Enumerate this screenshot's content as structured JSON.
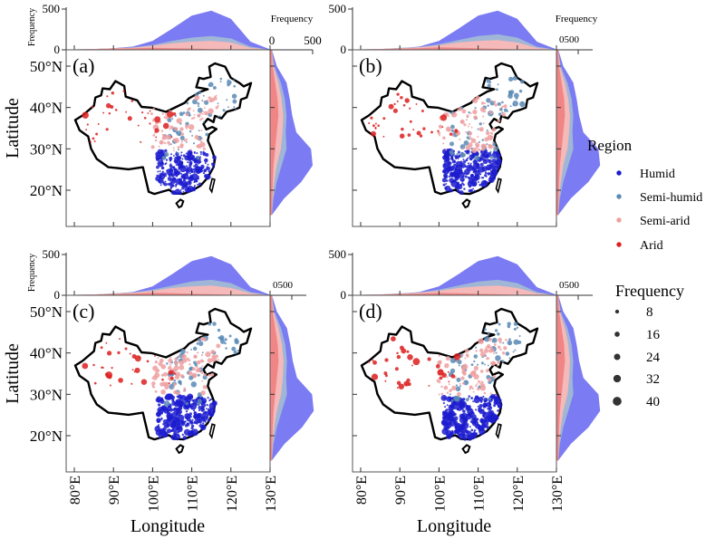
{
  "chart_data": {
    "type": "scatter",
    "title": "",
    "xlabel": "Longitude",
    "ylabel": "Latitude",
    "marginal_label": "Frequency",
    "xlim": [
      78,
      130
    ],
    "ylim": [
      12,
      54
    ],
    "x_ticks": [
      "80°E",
      "90°E",
      "100°E",
      "110°E",
      "120°E",
      "130°E"
    ],
    "x_tick_values": [
      80,
      90,
      100,
      110,
      120,
      130
    ],
    "y_ticks": [
      "50°N",
      "40°N",
      "30°N",
      "20°N"
    ],
    "y_tick_values": [
      50,
      40,
      30,
      20
    ],
    "top_marginal_ticks": [
      "500",
      "0"
    ],
    "right_marginal_tick_a": [
      "0",
      "500"
    ],
    "right_marginal_tick_compact": "0500",
    "legend_region": {
      "title": "Region",
      "items": [
        {
          "label": "Humid",
          "color": "#1c1ccf"
        },
        {
          "label": "Semi-humid",
          "color": "#5a8ab5"
        },
        {
          "label": "Semi-arid",
          "color": "#ee9fa0"
        },
        {
          "label": "Arid",
          "color": "#dd1f1f"
        }
      ]
    },
    "legend_size": {
      "title": "Frequency",
      "items": [
        {
          "label": "8",
          "value": 8
        },
        {
          "label": "16",
          "value": 16
        },
        {
          "label": "24",
          "value": 24
        },
        {
          "label": "32",
          "value": 32
        },
        {
          "label": "40",
          "value": 40
        }
      ]
    },
    "density_colors": {
      "Humid": "#7b7bf3",
      "Semi-humid": "#9fb6d6",
      "Semi-arid": "#f5b9b9",
      "Arid": "#f08585"
    },
    "top_density_lon": [
      80,
      85,
      90,
      95,
      100,
      105,
      110,
      115,
      120,
      125,
      130
    ],
    "right_density_lat": [
      14,
      18,
      22,
      26,
      30,
      34,
      38,
      42,
      46,
      50,
      54
    ],
    "panels": [
      {
        "label": "(a)",
        "top": {
          "total": [
            5,
            10,
            20,
            40,
            110,
            260,
            420,
            480,
            380,
            100,
            5
          ],
          "semi_humid": [
            5,
            10,
            20,
            30,
            60,
            110,
            150,
            170,
            140,
            40,
            0
          ],
          "semi_arid": [
            5,
            10,
            20,
            25,
            50,
            80,
            100,
            110,
            90,
            25,
            0
          ],
          "arid": [
            5,
            8,
            15,
            18,
            25,
            20,
            15,
            10,
            5,
            2,
            0
          ]
        },
        "right": {
          "total": [
            0,
            150,
            360,
            500,
            480,
            300,
            250,
            220,
            180,
            60,
            0
          ],
          "semi_humid": [
            0,
            20,
            60,
            120,
            180,
            170,
            180,
            160,
            110,
            30,
            0
          ],
          "semi_arid": [
            0,
            10,
            30,
            60,
            110,
            130,
            140,
            120,
            80,
            20,
            0
          ],
          "arid": [
            0,
            5,
            10,
            20,
            40,
            60,
            80,
            70,
            40,
            10,
            0
          ]
        },
        "right_xlim": [
          0,
          500
        ],
        "seed": 11
      },
      {
        "label": "(b)",
        "top": {
          "total": [
            5,
            10,
            20,
            40,
            110,
            260,
            420,
            480,
            380,
            100,
            5
          ],
          "semi_humid": [
            5,
            10,
            25,
            35,
            70,
            120,
            170,
            190,
            150,
            40,
            0
          ],
          "semi_arid": [
            5,
            10,
            20,
            30,
            55,
            90,
            110,
            120,
            90,
            25,
            0
          ],
          "arid": [
            5,
            8,
            15,
            20,
            30,
            25,
            18,
            12,
            5,
            2,
            0
          ]
        },
        "right": {
          "total": [
            0,
            300,
            720,
            1000,
            960,
            600,
            500,
            440,
            360,
            120,
            0
          ],
          "semi_humid": [
            0,
            40,
            120,
            240,
            360,
            340,
            360,
            320,
            220,
            60,
            0
          ],
          "semi_arid": [
            0,
            20,
            60,
            120,
            220,
            260,
            280,
            240,
            160,
            40,
            0
          ],
          "arid": [
            0,
            10,
            20,
            40,
            80,
            120,
            160,
            140,
            80,
            20,
            0
          ]
        },
        "right_xlim": [
          0,
          1000
        ],
        "seed": 23
      },
      {
        "label": "(c)",
        "top": {
          "total": [
            5,
            10,
            20,
            40,
            110,
            260,
            420,
            480,
            380,
            100,
            5
          ],
          "semi_humid": [
            5,
            10,
            25,
            35,
            70,
            120,
            170,
            190,
            150,
            40,
            0
          ],
          "semi_arid": [
            5,
            10,
            20,
            30,
            55,
            90,
            110,
            120,
            90,
            25,
            0
          ],
          "arid": [
            5,
            8,
            15,
            20,
            30,
            25,
            18,
            12,
            5,
            2,
            0
          ]
        },
        "right": {
          "total": [
            0,
            300,
            720,
            1000,
            960,
            600,
            500,
            440,
            360,
            120,
            0
          ],
          "semi_humid": [
            0,
            40,
            120,
            240,
            360,
            340,
            360,
            320,
            220,
            60,
            0
          ],
          "semi_arid": [
            0,
            20,
            60,
            120,
            220,
            260,
            280,
            240,
            160,
            40,
            0
          ],
          "arid": [
            0,
            10,
            20,
            40,
            80,
            120,
            160,
            140,
            80,
            20,
            0
          ]
        },
        "right_xlim": [
          0,
          1000
        ],
        "seed": 37
      },
      {
        "label": "(d)",
        "top": {
          "total": [
            5,
            10,
            20,
            40,
            110,
            260,
            420,
            480,
            380,
            100,
            5
          ],
          "semi_humid": [
            5,
            10,
            25,
            35,
            70,
            120,
            170,
            190,
            150,
            40,
            0
          ],
          "semi_arid": [
            5,
            10,
            20,
            30,
            55,
            90,
            110,
            120,
            90,
            25,
            0
          ],
          "arid": [
            5,
            8,
            15,
            20,
            30,
            25,
            18,
            12,
            5,
            2,
            0
          ]
        },
        "right": {
          "total": [
            0,
            300,
            720,
            1000,
            960,
            600,
            500,
            440,
            360,
            120,
            0
          ],
          "semi_humid": [
            0,
            40,
            120,
            240,
            360,
            340,
            360,
            320,
            220,
            60,
            0
          ],
          "semi_arid": [
            0,
            20,
            60,
            120,
            220,
            260,
            280,
            240,
            160,
            40,
            0
          ],
          "arid": [
            0,
            10,
            20,
            40,
            80,
            120,
            160,
            140,
            80,
            20,
            0
          ]
        },
        "right_xlim": [
          0,
          1000
        ],
        "seed": 53
      }
    ],
    "station_clusters": [
      {
        "region": "Humid",
        "lon": [
          102,
          122
        ],
        "lat": [
          20,
          32
        ],
        "count": 260,
        "freq": [
          4,
          40
        ]
      },
      {
        "region": "Semi-humid",
        "lon": [
          104,
          130
        ],
        "lat": [
          30,
          50
        ],
        "count": 70,
        "freq": [
          4,
          32
        ]
      },
      {
        "region": "Semi-arid",
        "lon": [
          100,
          124
        ],
        "lat": [
          32,
          46
        ],
        "count": 90,
        "freq": [
          4,
          32
        ]
      },
      {
        "region": "Arid",
        "lon": [
          76,
          108
        ],
        "lat": [
          34,
          47
        ],
        "count": 35,
        "freq": [
          4,
          40
        ]
      }
    ]
  }
}
